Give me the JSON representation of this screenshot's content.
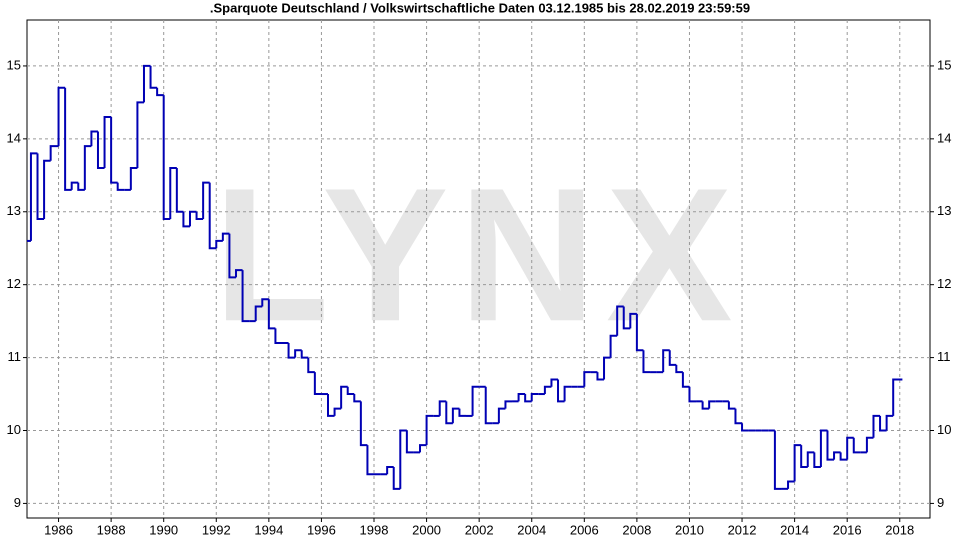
{
  "chart_data": {
    "type": "step",
    "title": ".Sparquote Deutschland / Volkswirtschaftliche Daten 03.12.1985 bis 28.02.2019 23:59:59",
    "watermark": "LYNX",
    "color": "#0000b4",
    "grid": true,
    "xlim": [
      1984.8,
      2019.15
    ],
    "ylim": [
      8.8,
      15.63
    ],
    "xticks": [
      1986,
      1988,
      1990,
      1992,
      1994,
      1996,
      1998,
      2000,
      2002,
      2004,
      2006,
      2008,
      2010,
      2012,
      2014,
      2016,
      2018
    ],
    "yticks": [
      9,
      10,
      11,
      12,
      13,
      14,
      15
    ],
    "x": [
      1984.8,
      1984.95,
      1985.2,
      1985.45,
      1985.7,
      1986.0,
      1986.25,
      1986.5,
      1986.75,
      1987.0,
      1987.25,
      1987.5,
      1987.75,
      1988.0,
      1988.25,
      1988.5,
      1988.75,
      1989.0,
      1989.25,
      1989.5,
      1989.75,
      1990.0,
      1990.25,
      1990.5,
      1990.75,
      1991.0,
      1991.25,
      1991.5,
      1991.75,
      1992.0,
      1992.25,
      1992.5,
      1992.75,
      1993.0,
      1993.25,
      1993.5,
      1993.75,
      1994.0,
      1994.25,
      1994.5,
      1994.75,
      1995.0,
      1995.25,
      1995.5,
      1995.75,
      1996.0,
      1996.25,
      1996.5,
      1996.75,
      1997.0,
      1997.25,
      1997.5,
      1997.75,
      1998.0,
      1998.25,
      1998.5,
      1998.75,
      1999.0,
      1999.25,
      1999.5,
      1999.75,
      2000.0,
      2000.25,
      2000.5,
      2000.75,
      2001.0,
      2001.25,
      2001.5,
      2001.75,
      2002.0,
      2002.25,
      2002.5,
      2002.75,
      2003.0,
      2003.25,
      2003.5,
      2003.75,
      2004.0,
      2004.25,
      2004.5,
      2004.75,
      2005.0,
      2005.25,
      2005.5,
      2005.75,
      2006.0,
      2006.25,
      2006.5,
      2006.75,
      2007.0,
      2007.25,
      2007.5,
      2007.75,
      2008.0,
      2008.25,
      2008.5,
      2008.75,
      2009.0,
      2009.25,
      2009.5,
      2009.75,
      2010.0,
      2010.25,
      2010.5,
      2010.75,
      2011.0,
      2011.25,
      2011.5,
      2011.75,
      2012.0,
      2012.25,
      2012.5,
      2012.75,
      2013.0,
      2013.25,
      2013.5,
      2013.75,
      2014.0,
      2014.25,
      2014.5,
      2014.75,
      2015.0,
      2015.25,
      2015.5,
      2015.75,
      2016.0,
      2016.25,
      2016.5,
      2016.75,
      2017.0,
      2017.25,
      2017.5,
      2017.75,
      2018.1
    ],
    "values": [
      12.6,
      13.8,
      12.9,
      13.7,
      13.9,
      14.7,
      13.3,
      13.4,
      13.3,
      13.9,
      14.1,
      13.6,
      14.3,
      13.4,
      13.3,
      13.3,
      13.6,
      14.5,
      15.0,
      14.7,
      14.6,
      12.9,
      13.6,
      13.0,
      12.8,
      13.0,
      12.9,
      13.4,
      12.5,
      12.6,
      12.7,
      12.1,
      12.2,
      11.5,
      11.5,
      11.7,
      11.8,
      11.4,
      11.2,
      11.2,
      11.0,
      11.1,
      11.0,
      10.8,
      10.5,
      10.5,
      10.2,
      10.3,
      10.6,
      10.5,
      10.4,
      9.8,
      9.4,
      9.4,
      9.4,
      9.5,
      9.2,
      10.0,
      9.7,
      9.7,
      9.8,
      10.2,
      10.2,
      10.4,
      10.1,
      10.3,
      10.2,
      10.2,
      10.6,
      10.6,
      10.1,
      10.1,
      10.3,
      10.4,
      10.4,
      10.5,
      10.4,
      10.5,
      10.5,
      10.6,
      10.7,
      10.4,
      10.6,
      10.6,
      10.6,
      10.8,
      10.8,
      10.7,
      11.0,
      11.3,
      11.7,
      11.4,
      11.6,
      11.1,
      10.8,
      10.8,
      10.8,
      11.1,
      10.9,
      10.8,
      10.6,
      10.4,
      10.4,
      10.3,
      10.4,
      10.4,
      10.4,
      10.3,
      10.1,
      10.0,
      10.0,
      10.0,
      10.0,
      10.0,
      9.2,
      9.2,
      9.3,
      9.8,
      9.5,
      9.7,
      9.5,
      10.0,
      9.6,
      9.7,
      9.6,
      9.9,
      9.7,
      9.7,
      9.9,
      10.2,
      10.0,
      10.2,
      10.7,
      10.7
    ]
  }
}
